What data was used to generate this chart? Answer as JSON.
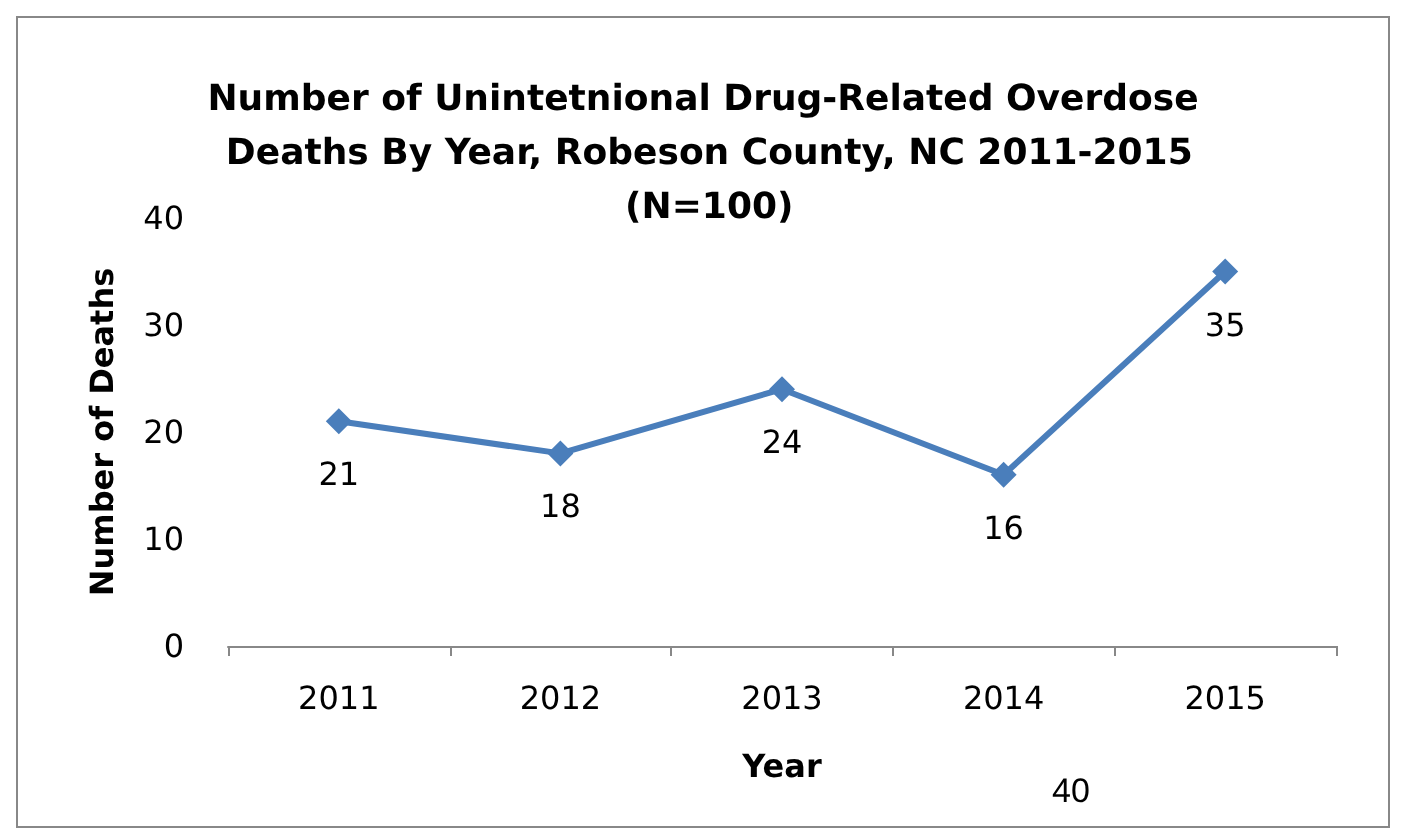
{
  "chart_data": {
    "type": "line",
    "title": "Number of Unintetnional Drug-Related Overdose Deaths By Year, Robeson County, NC 2011-2015 (N=100)",
    "xlabel": "Year",
    "ylabel": "Number of Deaths",
    "categories": [
      "2011",
      "2012",
      "2013",
      "2014",
      "2015"
    ],
    "series": [
      {
        "color": "#4a7ebb",
        "values": [
          21,
          18,
          24,
          16,
          35
        ]
      }
    ],
    "ylim": [
      0,
      40
    ],
    "yticks": [
      0,
      10,
      20,
      30,
      40
    ],
    "grid": false,
    "marker": "diamond",
    "line_style": "solid",
    "data_labels": true,
    "annotations": [
      "40"
    ]
  }
}
